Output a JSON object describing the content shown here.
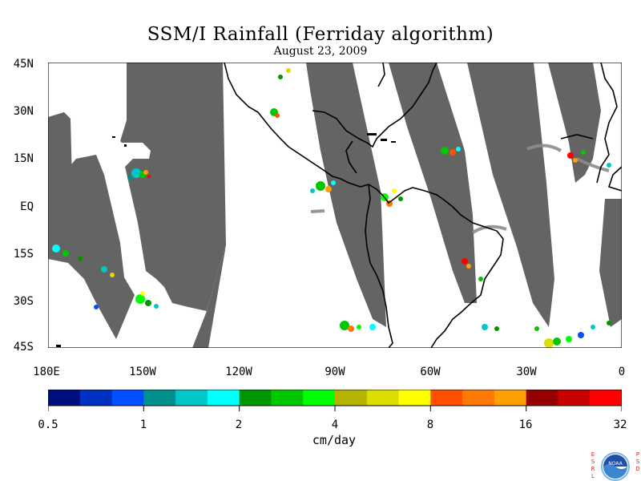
{
  "title": "SSM/I Rainfall (Ferriday algorithm)",
  "subtitle": "August 23, 2009",
  "y_axis_labels": [
    "45N",
    "30N",
    "15N",
    "EQ",
    "15S",
    "30S",
    "45S"
  ],
  "x_axis_labels": [
    "180E",
    "150W",
    "120W",
    "90W",
    "60W",
    "30W",
    "0"
  ],
  "colorbar": {
    "unit": "cm/day",
    "tick_labels": [
      "0.5",
      "1",
      "2",
      "4",
      "8",
      "16",
      "32"
    ],
    "colors": [
      "#000f80",
      "#0030c0",
      "#0050ff",
      "#009090",
      "#00c8c8",
      "#00ffff",
      "#009600",
      "#00c800",
      "#00ff00",
      "#b4b400",
      "#dcdc00",
      "#ffff00",
      "#ff5000",
      "#ff7800",
      "#ffa000",
      "#960000",
      "#c80000",
      "#ff0000"
    ]
  },
  "no_data_color": "#646464",
  "coastline_color": "#000000",
  "logo": {
    "left_letters": "ESRL",
    "right_letters": "PSD",
    "emblem_text": "NOAA"
  }
}
